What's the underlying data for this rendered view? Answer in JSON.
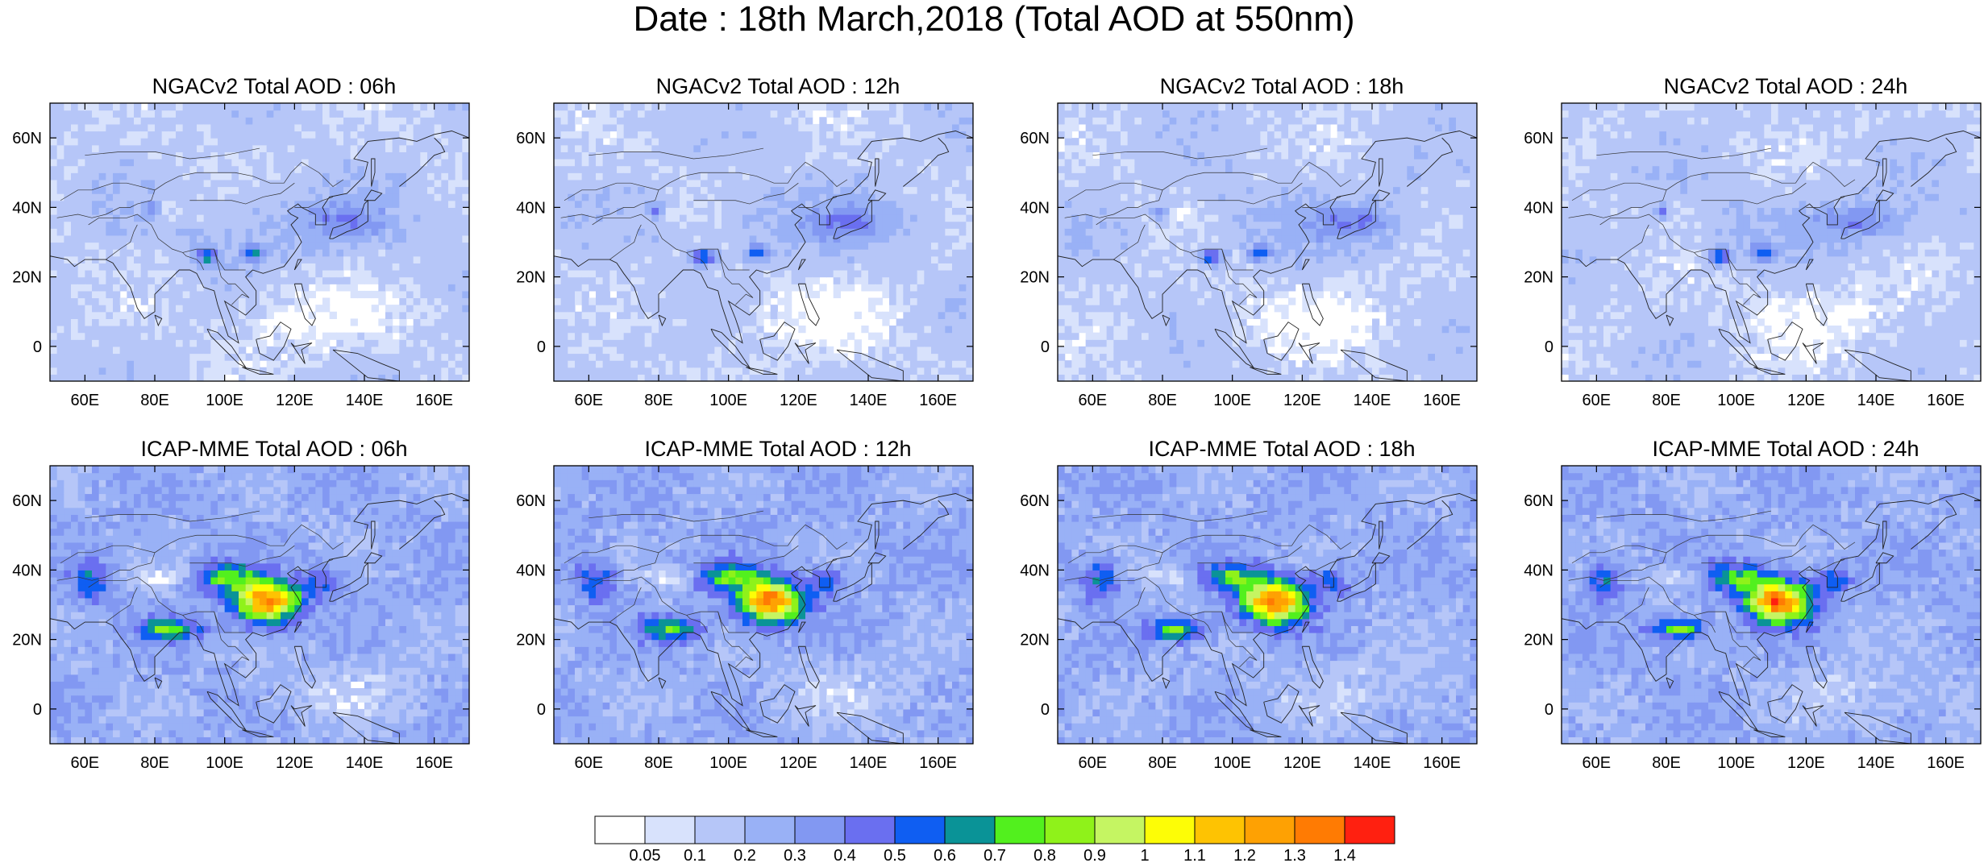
{
  "title": "Date : 18th March,2018 (Total AOD at 550nm)",
  "panels": [
    {
      "title": "NGACv2 Total AOD : 06h",
      "model": "ngac",
      "seed": 11
    },
    {
      "title": "NGACv2 Total AOD : 12h",
      "model": "ngac",
      "seed": 12
    },
    {
      "title": "NGACv2 Total AOD : 18h",
      "model": "ngac",
      "seed": 13
    },
    {
      "title": "NGACv2 Total AOD : 24h",
      "model": "ngac",
      "seed": 14
    },
    {
      "title": "ICAP-MME Total AOD : 06h",
      "model": "icap",
      "seed": 21
    },
    {
      "title": "ICAP-MME Total AOD : 12h",
      "model": "icap",
      "seed": 22
    },
    {
      "title": "ICAP-MME Total AOD : 18h",
      "model": "icap",
      "seed": 23
    },
    {
      "title": "ICAP-MME Total AOD : 24h",
      "model": "icap",
      "seed": 24
    }
  ],
  "map": {
    "lon_range": [
      50,
      170
    ],
    "lat_range": [
      -10,
      70
    ],
    "lon_ticks": [
      60,
      80,
      100,
      120,
      140,
      160
    ],
    "lon_tick_labels": [
      "60E",
      "80E",
      "100E",
      "120E",
      "140E",
      "160E"
    ],
    "lat_ticks": [
      0,
      20,
      40,
      60
    ],
    "lat_tick_labels": [
      "0",
      "20N",
      "40N",
      "60N"
    ]
  },
  "colorbar": {
    "labels": [
      "0.05",
      "0.1",
      "0.2",
      "0.3",
      "0.4",
      "0.5",
      "0.6",
      "0.7",
      "0.8",
      "0.9",
      "1",
      "1.1",
      "1.2",
      "1.3",
      "1.4"
    ],
    "colors": [
      "#ffffff",
      "#d8e2fc",
      "#b6c6f8",
      "#99b1f6",
      "#8298f2",
      "#6a6ff0",
      "#0f5ef2",
      "#0a9397",
      "#52f01e",
      "#8ff21a",
      "#c5f562",
      "#fdfd06",
      "#fec302",
      "#fea103",
      "#ff7b03",
      "#ff2010"
    ]
  },
  "chart_data": {
    "type": "heatmap",
    "title": "Date : 18th March,2018 (Total AOD at 550nm)",
    "panels": [
      "NGACv2 Total AOD : 06h",
      "NGACv2 Total AOD : 12h",
      "NGACv2 Total AOD : 18h",
      "NGACv2 Total AOD : 24h",
      "ICAP-MME Total AOD : 06h",
      "ICAP-MME Total AOD : 12h",
      "ICAP-MME Total AOD : 18h",
      "ICAP-MME Total AOD : 24h"
    ],
    "x_range": [
      50,
      170
    ],
    "y_range": [
      -10,
      70
    ],
    "colorbar_levels": [
      0.05,
      0.1,
      0.2,
      0.3,
      0.4,
      0.5,
      0.6,
      0.7,
      0.8,
      0.9,
      1,
      1.1,
      1.2,
      1.3,
      1.4
    ]
  }
}
